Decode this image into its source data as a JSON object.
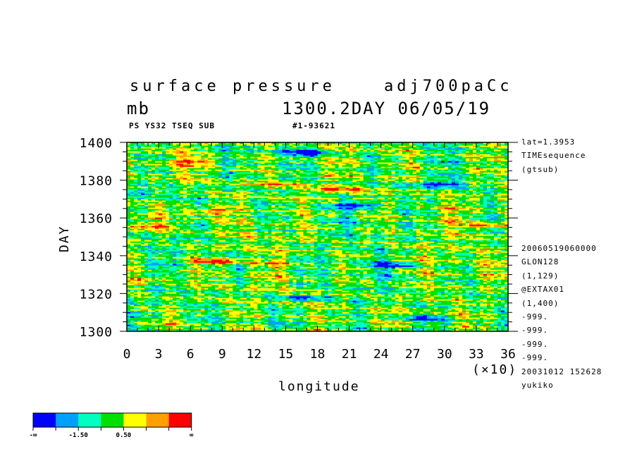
{
  "header": {
    "title_left": "surface pressure",
    "title_right": "adj700paCc",
    "units": "mb",
    "subtitle": "1300.2DAY 06/05/19",
    "left_tag": "PS YS32 TSEQ SUB",
    "right_tag": "#1-93621"
  },
  "side_info": {
    "top": [
      "lat=1.3953",
      "TIMEsequence",
      "(gtsub)"
    ],
    "bottom": [
      "20060519060000",
      "GLON128",
      "(1,129)",
      "@EXTAX01",
      "(1,400)",
      "-999.",
      "-999.",
      "-999.",
      "-999.",
      "20031012 152628",
      "yukiko"
    ]
  },
  "chart_data": {
    "type": "heatmap",
    "title": "surface pressure",
    "xlabel": "longitude",
    "ylabel": "DAY",
    "x_multiplier_label": "(×10)",
    "xlim": [
      0,
      36
    ],
    "ylim": [
      1300,
      1400
    ],
    "x_ticks": [
      0,
      3,
      6,
      9,
      12,
      15,
      18,
      21,
      24,
      27,
      30,
      33,
      36
    ],
    "y_ticks": [
      1300,
      1320,
      1340,
      1360,
      1380,
      1400
    ],
    "colorbar": {
      "colors": [
        "#0000ff",
        "#00a0ff",
        "#00ffc0",
        "#00e000",
        "#ffff00",
        "#ffa000",
        "#ff0000"
      ],
      "labels": [
        "-∞",
        "-1.50",
        "0.50",
        "∞"
      ]
    },
    "features": [
      {
        "name": "low",
        "x": 17.5,
        "y": 1395,
        "value": -3.2
      },
      {
        "name": "low",
        "x": 22.0,
        "y": 1367,
        "value": -3.0
      },
      {
        "name": "low",
        "x": 29.5,
        "y": 1378,
        "value": -2.8
      },
      {
        "name": "low",
        "x": 25.0,
        "y": 1335,
        "value": -2.4
      },
      {
        "name": "low",
        "x": 16.5,
        "y": 1318,
        "value": -2.2
      },
      {
        "name": "low",
        "x": 28.0,
        "y": 1307,
        "value": -2.0
      },
      {
        "name": "low",
        "x": 1.5,
        "y": 1374,
        "value": -1.8
      },
      {
        "name": "high",
        "x": 7.0,
        "y": 1363,
        "value": 3.0
      },
      {
        "name": "high",
        "x": 2.5,
        "y": 1356,
        "value": 2.6
      },
      {
        "name": "high",
        "x": 8.5,
        "y": 1337,
        "value": 2.8
      },
      {
        "name": "high",
        "x": 20.0,
        "y": 1375,
        "value": 2.4
      },
      {
        "name": "high",
        "x": 6.5,
        "y": 1390,
        "value": 2.0
      },
      {
        "name": "high",
        "x": 34.0,
        "y": 1356,
        "value": 2.2
      },
      {
        "name": "high",
        "x": 14.5,
        "y": 1378,
        "value": 1.8
      },
      {
        "name": "high",
        "x": 3.0,
        "y": 1328,
        "value": 1.6
      }
    ]
  }
}
